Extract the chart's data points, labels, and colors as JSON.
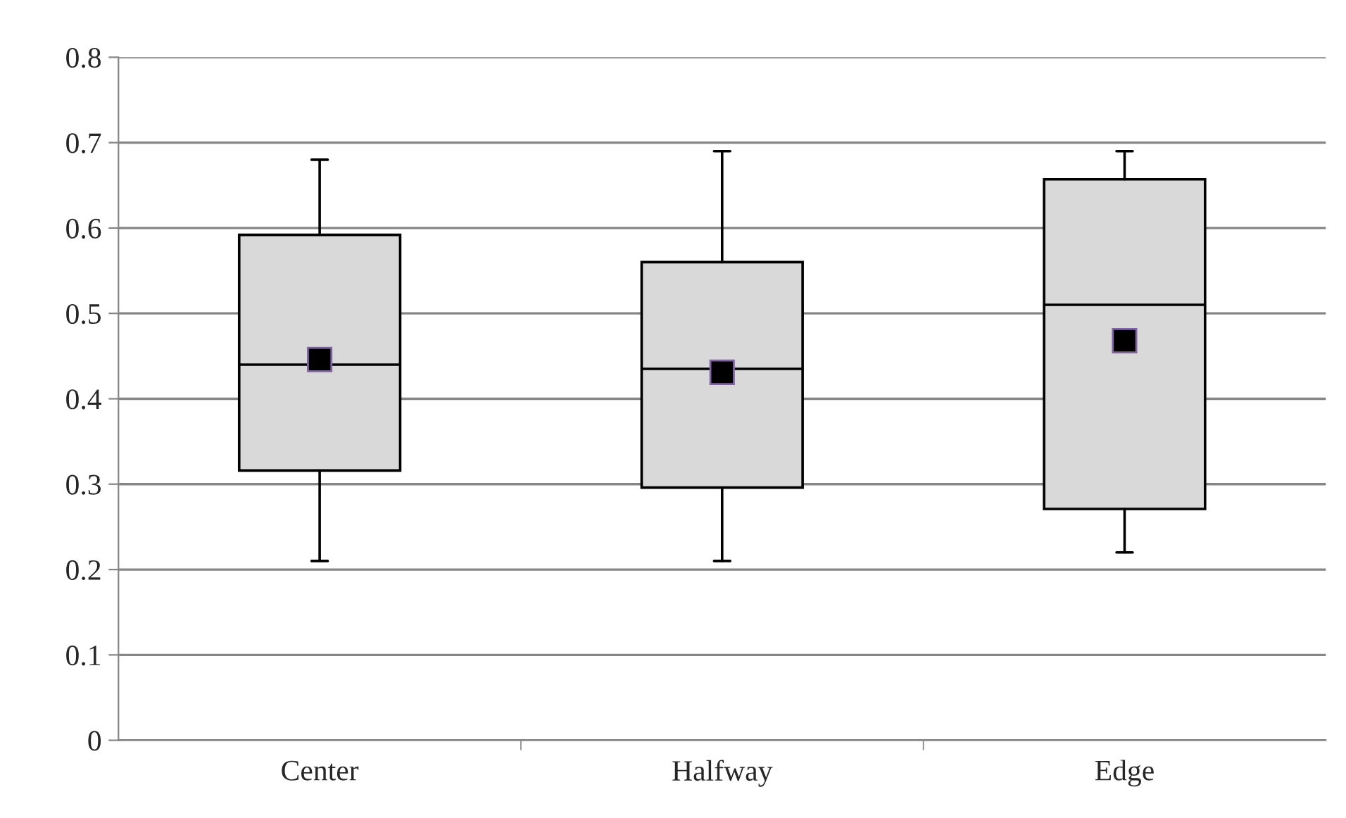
{
  "chart_data": {
    "type": "box",
    "categories": [
      "Center",
      "Halfway",
      "Edge"
    ],
    "boxes": [
      {
        "low": 0.21,
        "q1": 0.316,
        "median": 0.44,
        "q3": 0.592,
        "high": 0.68,
        "mean": 0.446
      },
      {
        "low": 0.21,
        "q1": 0.296,
        "median": 0.435,
        "q3": 0.56,
        "high": 0.69,
        "mean": 0.431
      },
      {
        "low": 0.22,
        "q1": 0.271,
        "median": 0.51,
        "q3": 0.657,
        "high": 0.69,
        "mean": 0.468
      }
    ],
    "color": "#d9d9d9",
    "marker": "square",
    "ylim": [
      0,
      0.8
    ],
    "yticks": [
      0,
      0.1,
      0.2,
      0.3,
      0.4,
      0.5,
      0.6,
      0.7,
      0.8
    ],
    "grid": "y"
  }
}
